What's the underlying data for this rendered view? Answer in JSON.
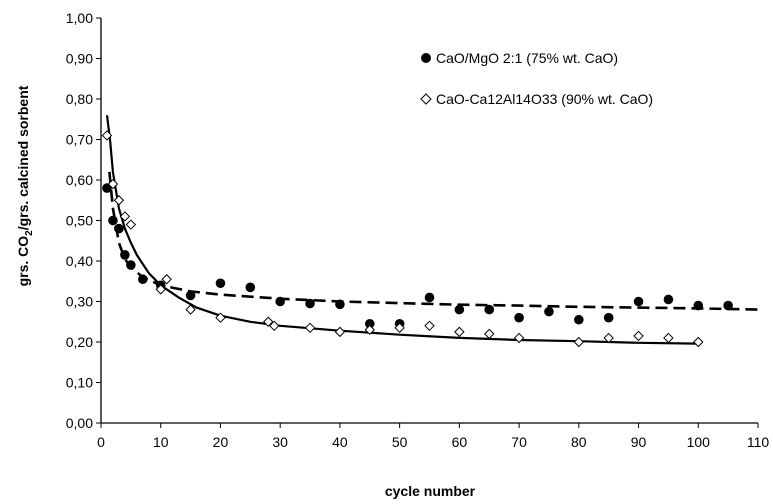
{
  "chart_data": {
    "type": "scatter",
    "xlabel": "cycle number",
    "ylabel_parts": [
      "grs. CO",
      "2",
      "/grs. calcined sorbent"
    ],
    "xlim": [
      0,
      110
    ],
    "ylim": [
      0,
      1.0
    ],
    "x_ticks": [
      "0",
      "10",
      "20",
      "30",
      "40",
      "50",
      "60",
      "70",
      "80",
      "90",
      "100",
      "110"
    ],
    "y_ticks": [
      "0,00",
      "0,10",
      "0,20",
      "0,30",
      "0,40",
      "0,50",
      "0,60",
      "0,70",
      "0,80",
      "0,90",
      "1,00"
    ],
    "grid": false,
    "legend_position": "top-right",
    "series": [
      {
        "name": "CaO/MgO 2:1 (75% wt. CaO)",
        "marker": "filled-circle",
        "color": "#000000",
        "fit": "dashed",
        "points": [
          [
            1,
            0.58
          ],
          [
            2,
            0.5
          ],
          [
            3,
            0.48
          ],
          [
            4,
            0.415
          ],
          [
            5,
            0.39
          ],
          [
            7,
            0.355
          ],
          [
            10,
            0.34
          ],
          [
            15,
            0.315
          ],
          [
            20,
            0.345
          ],
          [
            25,
            0.335
          ],
          [
            30,
            0.3
          ],
          [
            35,
            0.295
          ],
          [
            40,
            0.293
          ],
          [
            45,
            0.245
          ],
          [
            50,
            0.245
          ],
          [
            55,
            0.31
          ],
          [
            60,
            0.28
          ],
          [
            65,
            0.28
          ],
          [
            70,
            0.26
          ],
          [
            75,
            0.275
          ],
          [
            80,
            0.255
          ],
          [
            85,
            0.26
          ],
          [
            90,
            0.3
          ],
          [
            95,
            0.305
          ],
          [
            100,
            0.29
          ],
          [
            105,
            0.29
          ]
        ],
        "fit_points": [
          [
            1.4,
            0.62
          ],
          [
            2,
            0.53
          ],
          [
            3,
            0.445
          ],
          [
            4,
            0.405
          ],
          [
            5,
            0.385
          ],
          [
            7,
            0.36
          ],
          [
            10,
            0.34
          ],
          [
            15,
            0.325
          ],
          [
            20,
            0.317
          ],
          [
            30,
            0.307
          ],
          [
            40,
            0.3
          ],
          [
            50,
            0.296
          ],
          [
            60,
            0.292
          ],
          [
            70,
            0.29
          ],
          [
            80,
            0.287
          ],
          [
            90,
            0.285
          ],
          [
            100,
            0.283
          ],
          [
            110,
            0.28
          ]
        ]
      },
      {
        "name": "CaO-Ca12Al14O33 (90% wt. CaO)",
        "marker": "open-diamond",
        "color": "#000000",
        "fit": "solid",
        "points": [
          [
            1,
            0.71
          ],
          [
            2,
            0.59
          ],
          [
            3,
            0.55
          ],
          [
            4,
            0.51
          ],
          [
            5,
            0.49
          ],
          [
            10,
            0.33
          ],
          [
            11,
            0.355
          ],
          [
            15,
            0.28
          ],
          [
            20,
            0.26
          ],
          [
            28,
            0.25
          ],
          [
            29,
            0.24
          ],
          [
            35,
            0.235
          ],
          [
            40,
            0.225
          ],
          [
            45,
            0.23
          ],
          [
            50,
            0.235
          ],
          [
            55,
            0.24
          ],
          [
            60,
            0.225
          ],
          [
            65,
            0.22
          ],
          [
            70,
            0.21
          ],
          [
            80,
            0.2
          ],
          [
            85,
            0.21
          ],
          [
            90,
            0.215
          ],
          [
            95,
            0.21
          ],
          [
            100,
            0.2
          ]
        ],
        "fit_points": [
          [
            1,
            0.76
          ],
          [
            1.5,
            0.7
          ],
          [
            2,
            0.62
          ],
          [
            3,
            0.53
          ],
          [
            4,
            0.48
          ],
          [
            5,
            0.445
          ],
          [
            6,
            0.415
          ],
          [
            8,
            0.37
          ],
          [
            10,
            0.34
          ],
          [
            13,
            0.31
          ],
          [
            16,
            0.285
          ],
          [
            20,
            0.265
          ],
          [
            25,
            0.25
          ],
          [
            30,
            0.24
          ],
          [
            40,
            0.228
          ],
          [
            50,
            0.218
          ],
          [
            60,
            0.21
          ],
          [
            70,
            0.205
          ],
          [
            80,
            0.202
          ],
          [
            90,
            0.198
          ],
          [
            100,
            0.196
          ]
        ]
      }
    ]
  }
}
